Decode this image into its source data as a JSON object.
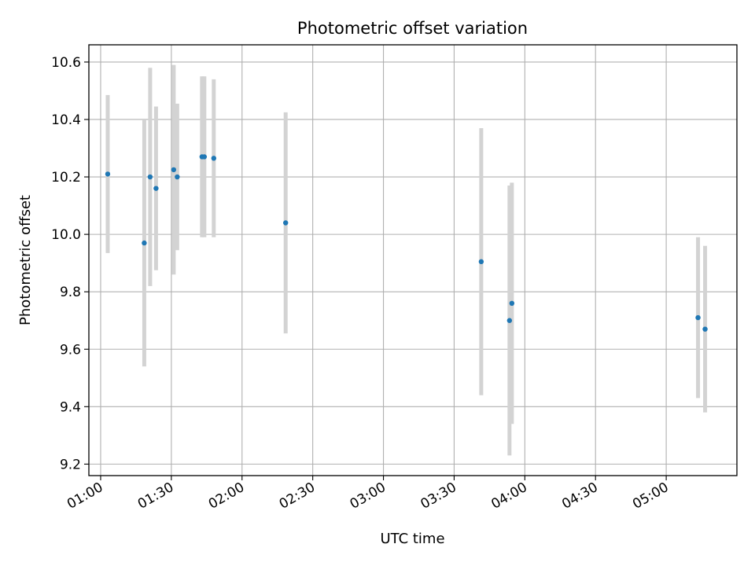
{
  "chart_data": {
    "type": "scatter",
    "title": "Photometric offset variation",
    "xlabel": "UTC time",
    "ylabel": "Photometric offset",
    "xlim": [
      "00:55",
      "05:30"
    ],
    "ylim": [
      9.16,
      10.66
    ],
    "x_ticks": [
      "01:00",
      "01:30",
      "02:00",
      "02:30",
      "03:00",
      "03:30",
      "04:00",
      "04:30",
      "05:00"
    ],
    "y_ticks": [
      9.2,
      9.4,
      9.6,
      9.8,
      10.0,
      10.2,
      10.4,
      10.6
    ],
    "y_tick_labels": [
      "9.2",
      "9.4",
      "9.6",
      "9.8",
      "10.0",
      "10.2",
      "10.4",
      "10.6"
    ],
    "grid": true,
    "point_color": "#1f77b4",
    "errorbar_color": "#d3d3d3",
    "points": [
      {
        "x": "01:03",
        "y": 10.21,
        "err": 0.275
      },
      {
        "x": "01:18.5",
        "y": 9.97,
        "err": 0.43
      },
      {
        "x": "01:21",
        "y": 10.2,
        "err": 0.38
      },
      {
        "x": "01:23.5",
        "y": 10.16,
        "err": 0.285
      },
      {
        "x": "01:31",
        "y": 10.225,
        "err": 0.365
      },
      {
        "x": "01:32.5",
        "y": 10.2,
        "err": 0.255
      },
      {
        "x": "01:43",
        "y": 10.27,
        "err": 0.28
      },
      {
        "x": "01:44",
        "y": 10.27,
        "err": 0.28
      },
      {
        "x": "01:48",
        "y": 10.265,
        "err": 0.275
      },
      {
        "x": "02:18.5",
        "y": 10.04,
        "err": 0.385
      },
      {
        "x": "03:41.5",
        "y": 9.905,
        "err": 0.465
      },
      {
        "x": "03:53.5",
        "y": 9.7,
        "err": 0.47
      },
      {
        "x": "03:54.5",
        "y": 9.76,
        "err": 0.42
      },
      {
        "x": "05:13.5",
        "y": 9.71,
        "err": 0.28
      },
      {
        "x": "05:16.5",
        "y": 9.67,
        "err": 0.29
      }
    ]
  }
}
